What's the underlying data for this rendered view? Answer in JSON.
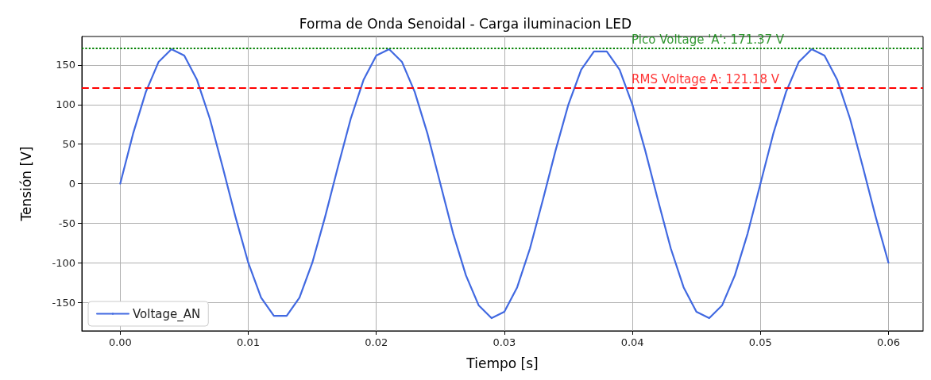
{
  "chart_data": {
    "type": "line",
    "title": "Forma de Onda Senoidal - Carga iluminacion LED",
    "xlabel": "Tiempo [s]",
    "ylabel": "Tensión [V]",
    "x": [
      0,
      0.001,
      0.002,
      0.003,
      0.004,
      0.005,
      0.006,
      0.007,
      0.008,
      0.009,
      0.01,
      0.011,
      0.012,
      0.013,
      0.014,
      0.015,
      0.016,
      0.017,
      0.018,
      0.019,
      0.02,
      0.021,
      0.022,
      0.023,
      0.024,
      0.025,
      0.026,
      0.027,
      0.028,
      0.029,
      0.03,
      0.031,
      0.032,
      0.033,
      0.034,
      0.035,
      0.036,
      0.037,
      0.038,
      0.039,
      0.04,
      0.041,
      0.042,
      0.043,
      0.044,
      0.045,
      0.046,
      0.047,
      0.048,
      0.049,
      0.05,
      0.051,
      0.052,
      0.053,
      0.054,
      0.055,
      0.056,
      0.057,
      0.058,
      0.059,
      0.06
    ],
    "series": [
      {
        "name": "Voltage_AN",
        "color": "#4169e1",
        "values": [
          0,
          63,
          116,
          154,
          170,
          162,
          131,
          82,
          21,
          -42,
          -100,
          -144,
          -167,
          -167,
          -144,
          -100,
          -42,
          21,
          82,
          131,
          162,
          170,
          154,
          116,
          63,
          0,
          -63,
          -116,
          -154,
          -170,
          -162,
          -131,
          -82,
          -21,
          42,
          100,
          144,
          167,
          167,
          144,
          100,
          42,
          -21,
          -82,
          -131,
          -162,
          -170,
          -154,
          -116,
          -63,
          0,
          63,
          116,
          154,
          170,
          162,
          131,
          82,
          21,
          -42,
          -100
        ]
      }
    ],
    "xlim": [
      -0.003,
      0.0627
    ],
    "xticks": [
      {
        "value": 0,
        "label": "0.00"
      },
      {
        "value": 0.01,
        "label": "0.01"
      },
      {
        "value": 0.02,
        "label": "0.02"
      },
      {
        "value": 0.03,
        "label": "0.03"
      },
      {
        "value": 0.04,
        "label": "0.04"
      },
      {
        "value": 0.05,
        "label": "0.05"
      },
      {
        "value": 0.06,
        "label": "0.06"
      }
    ],
    "ylim": [
      -186,
      186
    ],
    "yticks": [
      -150,
      -100,
      -50,
      0,
      50,
      100,
      150
    ],
    "ref_lines": [
      {
        "axis": "y",
        "value": 171.37,
        "color": "#008000",
        "line_style": "dotted"
      },
      {
        "axis": "y",
        "value": 121.18,
        "color": "#ff0000",
        "line_style": "dashed"
      }
    ],
    "annotations": [
      {
        "text": "Pico Voltage 'A': 171.37 V",
        "x": 0.04,
        "y": 171.37
      },
      {
        "text": "RMS Voltage A: 121.18 V",
        "x": 0.04,
        "y": 121.18
      }
    ],
    "grid": true,
    "legend": "bottom left",
    "marker": "none",
    "line_style": "solid"
  }
}
